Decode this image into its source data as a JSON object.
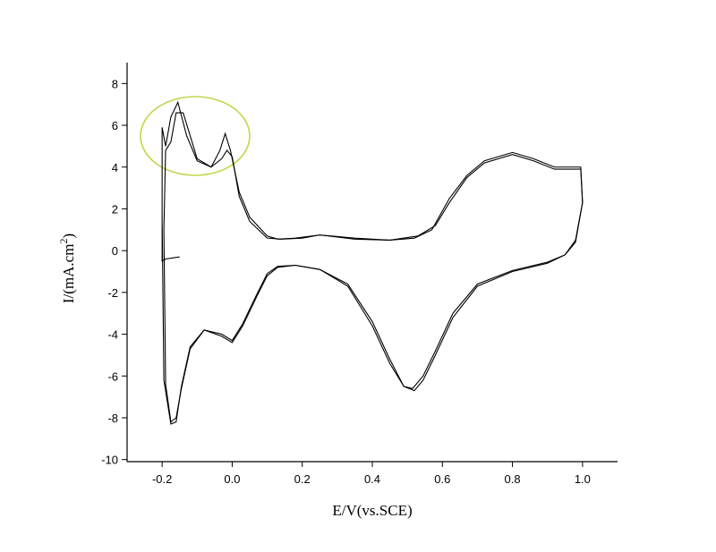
{
  "chart_data": {
    "type": "line",
    "x_label": "E/V(vs.SCE)",
    "y_label": [
      "I/(mA.cm",
      "2",
      ")"
    ],
    "xlim": [
      -0.3,
      1.1
    ],
    "xticks": [
      -0.2,
      {
        "value": 0,
        "label": "0.0"
      },
      0.2,
      0.4,
      0.6,
      0.8,
      {
        "value": 1,
        "label": "1.0"
      }
    ],
    "ylim": [
      -10.1,
      9
    ],
    "yticks": [
      -10,
      -8,
      -6,
      -4,
      -2,
      0,
      2,
      4,
      6,
      8
    ],
    "series": [
      {
        "color": "#000000",
        "x": [
          -0.2,
          -0.2,
          -0.19,
          -0.175,
          -0.155,
          -0.13,
          -0.1,
          -0.06,
          -0.035,
          -0.02,
          -0.005,
          0.02,
          0.05,
          0.1,
          0.13,
          0.18,
          0.25,
          0.35,
          0.45,
          0.52,
          0.57,
          0.62,
          0.67,
          0.72,
          0.8,
          0.86,
          0.92,
          0.995,
          1.0,
          0.98,
          0.95,
          0.9,
          0.8,
          0.7,
          0.63,
          0.58,
          0.545,
          0.52,
          0.49,
          0.45,
          0.4,
          0.33,
          0.25,
          0.18,
          0.13,
          0.1,
          0.07,
          0.03,
          0.0,
          -0.03,
          -0.08,
          -0.12,
          -0.145,
          -0.16,
          -0.175,
          -0.195,
          -0.2,
          -0.2,
          -0.19,
          -0.17,
          -0.15
        ],
        "values": [
          -0.3,
          5.9,
          5.0,
          6.4,
          7.1,
          5.5,
          4.3,
          4.0,
          4.8,
          5.6,
          4.8,
          2.8,
          1.6,
          0.7,
          0.55,
          0.6,
          0.75,
          0.6,
          0.5,
          0.6,
          1.0,
          2.5,
          3.6,
          4.3,
          4.7,
          4.4,
          4.0,
          4.0,
          2.3,
          0.5,
          -0.2,
          -0.6,
          -1.0,
          -1.7,
          -3.2,
          -5.0,
          -6.2,
          -6.7,
          -6.5,
          -5.2,
          -3.4,
          -1.6,
          -0.9,
          -0.7,
          -0.8,
          -1.2,
          -2.2,
          -3.6,
          -4.4,
          -4.1,
          -3.8,
          -4.6,
          -6.5,
          -8.2,
          -8.3,
          -6.2,
          1.5,
          -0.5,
          -0.4,
          -0.35,
          -0.3
        ]
      },
      {
        "color": "#000000",
        "x": [
          -0.195,
          -0.19,
          -0.175,
          -0.16,
          -0.14,
          -0.1,
          -0.06,
          -0.03,
          -0.015,
          0.0,
          0.02,
          0.05,
          0.1,
          0.14,
          0.2,
          0.25,
          0.35,
          0.45,
          0.53,
          0.58,
          0.62,
          0.67,
          0.72,
          0.8,
          0.86,
          0.92,
          0.995,
          1.0,
          0.98,
          0.95,
          0.9,
          0.8,
          0.7,
          0.63,
          0.58,
          0.545,
          0.515,
          0.49,
          0.45,
          0.4,
          0.33,
          0.25,
          0.18,
          0.13,
          0.1,
          0.07,
          0.03,
          0.0,
          -0.03,
          -0.08,
          -0.12,
          -0.145,
          -0.16,
          -0.175,
          -0.19,
          -0.195
        ],
        "values": [
          1.0,
          4.8,
          5.2,
          6.6,
          6.6,
          4.4,
          4.0,
          4.4,
          4.8,
          4.5,
          2.6,
          1.4,
          0.6,
          0.55,
          0.6,
          0.75,
          0.55,
          0.5,
          0.7,
          1.2,
          2.3,
          3.5,
          4.2,
          4.6,
          4.3,
          3.9,
          3.9,
          2.3,
          0.4,
          -0.2,
          -0.55,
          -0.95,
          -1.6,
          -3.0,
          -4.8,
          -6.0,
          -6.6,
          -6.5,
          -5.4,
          -3.6,
          -1.7,
          -0.9,
          -0.7,
          -0.75,
          -1.1,
          -2.1,
          -3.5,
          -4.3,
          -4.0,
          -3.8,
          -4.7,
          -6.6,
          -8.0,
          -8.2,
          -6.4,
          1.0
        ]
      }
    ]
  }
}
